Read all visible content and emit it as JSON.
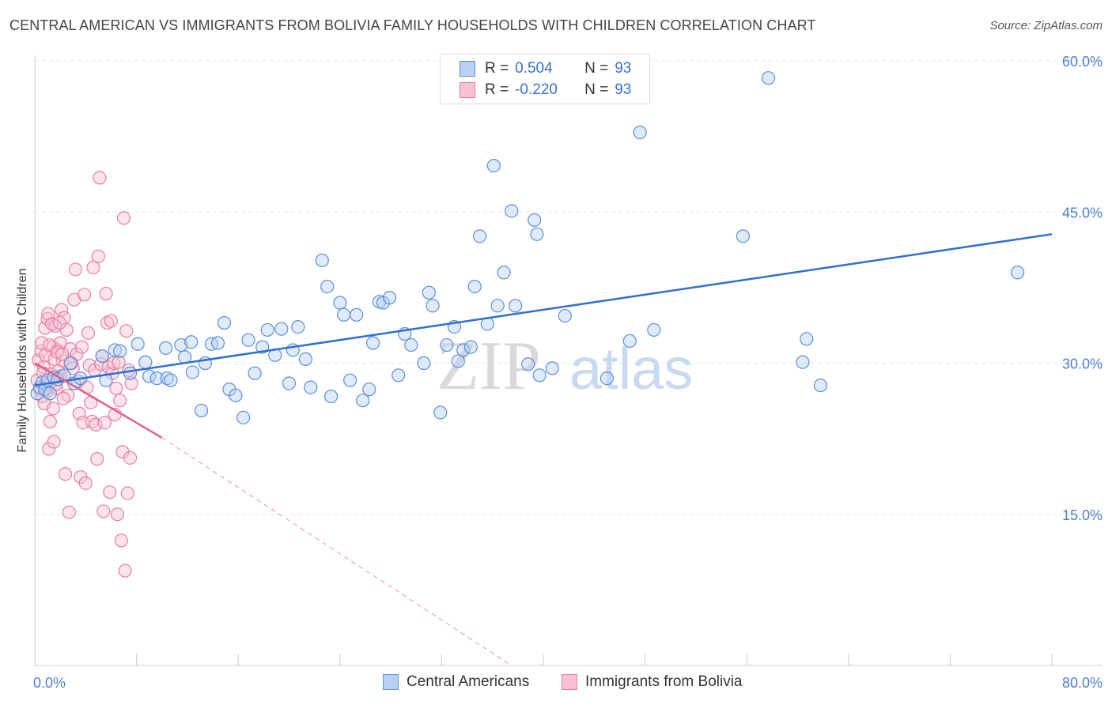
{
  "header": {
    "title": "CENTRAL AMERICAN VS IMMIGRANTS FROM BOLIVIA FAMILY HOUSEHOLDS WITH CHILDREN CORRELATION CHART",
    "source": "Source: ZipAtlas.com"
  },
  "watermark": {
    "zip": "ZIP",
    "atlas": "atlas"
  },
  "legend": {
    "r_label": "R =",
    "n_label": "N =",
    "series": [
      {
        "r": "0.504",
        "n": "93"
      },
      {
        "r": "-0.220",
        "n": "93"
      }
    ]
  },
  "colors": {
    "blue_fill": "#b8d1f3",
    "blue_stroke": "#5b8fd6",
    "blue_line": "#2e6fcf",
    "pink_fill": "#f7c1d2",
    "pink_stroke": "#e67ea0",
    "pink_line": "#e0608a",
    "axis_text": "#4a7fd0"
  },
  "chart_data": {
    "type": "scatter",
    "title": "CENTRAL AMERICAN VS IMMIGRANTS FROM BOLIVIA FAMILY HOUSEHOLDS WITH CHILDREN CORRELATION CHART",
    "xlabel": "",
    "ylabel": "Family Households with Children",
    "xlim": [
      0,
      80
    ],
    "ylim": [
      0,
      60
    ],
    "x_tick_labels": [
      "0.0%",
      "80.0%"
    ],
    "y_ticks": [
      15,
      30,
      45,
      60
    ],
    "y_tick_labels": [
      "15.0%",
      "30.0%",
      "45.0%",
      "60.0%"
    ],
    "legend_position": "top-center",
    "grid": true,
    "series": [
      {
        "name": "Central Americans",
        "r": 0.504,
        "n": 93,
        "trend": {
          "x": [
            0,
            80
          ],
          "y": [
            27.8,
            42.8
          ]
        },
        "points": [
          [
            0.2,
            27
          ],
          [
            0.4,
            27.6
          ],
          [
            0.6,
            28.1
          ],
          [
            0.8,
            27.4
          ],
          [
            1.0,
            28.3
          ],
          [
            1.2,
            27.0
          ],
          [
            1.5,
            28.6
          ],
          [
            1.8,
            28.4
          ],
          [
            2.3,
            28.8
          ],
          [
            2.8,
            30.0
          ],
          [
            3.1,
            28.0
          ],
          [
            3.6,
            28.5
          ],
          [
            5.3,
            30.7
          ],
          [
            5.6,
            28.3
          ],
          [
            6.3,
            31.3
          ],
          [
            6.7,
            31.2
          ],
          [
            7.5,
            29.0
          ],
          [
            8.1,
            31.9
          ],
          [
            8.7,
            30.1
          ],
          [
            9.0,
            28.7
          ],
          [
            9.6,
            28.5
          ],
          [
            10.3,
            31.5
          ],
          [
            10.4,
            28.5
          ],
          [
            10.7,
            28.3
          ],
          [
            11.5,
            31.8
          ],
          [
            11.8,
            30.6
          ],
          [
            12.3,
            32.1
          ],
          [
            12.4,
            29.1
          ],
          [
            13.1,
            25.3
          ],
          [
            13.4,
            30.0
          ],
          [
            13.9,
            31.9
          ],
          [
            14.4,
            32.0
          ],
          [
            14.9,
            34.0
          ],
          [
            15.3,
            27.4
          ],
          [
            15.8,
            26.8
          ],
          [
            16.4,
            24.6
          ],
          [
            16.8,
            32.3
          ],
          [
            17.3,
            29.0
          ],
          [
            17.9,
            31.6
          ],
          [
            18.3,
            33.3
          ],
          [
            18.9,
            30.8
          ],
          [
            19.4,
            33.4
          ],
          [
            20.0,
            28.0
          ],
          [
            20.3,
            31.3
          ],
          [
            20.7,
            33.6
          ],
          [
            21.3,
            30.4
          ],
          [
            21.7,
            27.6
          ],
          [
            22.6,
            40.2
          ],
          [
            23.0,
            37.6
          ],
          [
            23.3,
            26.7
          ],
          [
            24.0,
            36.0
          ],
          [
            24.3,
            34.8
          ],
          [
            24.8,
            28.3
          ],
          [
            25.3,
            34.8
          ],
          [
            25.8,
            26.3
          ],
          [
            26.3,
            27.4
          ],
          [
            26.6,
            32.0
          ],
          [
            27.1,
            36.1
          ],
          [
            27.4,
            36.0
          ],
          [
            27.9,
            36.5
          ],
          [
            28.6,
            28.8
          ],
          [
            29.1,
            32.9
          ],
          [
            29.6,
            31.8
          ],
          [
            30.6,
            30.0
          ],
          [
            31.0,
            37.0
          ],
          [
            31.3,
            35.7
          ],
          [
            31.9,
            25.1
          ],
          [
            32.4,
            31.8
          ],
          [
            33.0,
            33.6
          ],
          [
            33.3,
            30.2
          ],
          [
            33.7,
            31.3
          ],
          [
            34.3,
            31.6
          ],
          [
            34.6,
            37.6
          ],
          [
            35.0,
            42.6
          ],
          [
            35.6,
            33.9
          ],
          [
            36.1,
            49.6
          ],
          [
            36.4,
            35.7
          ],
          [
            36.9,
            39.0
          ],
          [
            37.5,
            45.1
          ],
          [
            37.8,
            35.7
          ],
          [
            38.8,
            29.9
          ],
          [
            39.3,
            44.2
          ],
          [
            39.7,
            28.8
          ],
          [
            39.5,
            42.8
          ],
          [
            40.7,
            29.5
          ],
          [
            41.7,
            34.7
          ],
          [
            45.0,
            28.5
          ],
          [
            46.8,
            32.2
          ],
          [
            47.6,
            52.9
          ],
          [
            48.7,
            33.3
          ],
          [
            55.7,
            42.6
          ],
          [
            57.7,
            58.3
          ],
          [
            60.4,
            30.1
          ],
          [
            60.7,
            32.4
          ],
          [
            61.8,
            27.8
          ],
          [
            77.3,
            39.0
          ]
        ]
      },
      {
        "name": "Immigrants from Bolivia",
        "r": -0.22,
        "n": 93,
        "trend_solid": {
          "x": [
            0,
            10
          ],
          "y": [
            30.0,
            22.6
          ]
        },
        "trend_dashed": {
          "x": [
            10,
            37.5
          ],
          "y": [
            22.6,
            0
          ]
        },
        "points": [
          [
            0.2,
            28.3
          ],
          [
            0.3,
            30.3
          ],
          [
            0.4,
            27.4
          ],
          [
            0.5,
            31.2
          ],
          [
            0.6,
            26.7
          ],
          [
            0.7,
            29.6
          ],
          [
            0.8,
            33.5
          ],
          [
            0.9,
            27.8
          ],
          [
            1.0,
            34.4
          ],
          [
            1.1,
            21.5
          ],
          [
            1.2,
            24.2
          ],
          [
            1.3,
            28.9
          ],
          [
            1.4,
            31.6
          ],
          [
            1.5,
            22.2
          ],
          [
            1.6,
            33.7
          ],
          [
            1.7,
            27.5
          ],
          [
            1.8,
            31.3
          ],
          [
            1.9,
            28.6
          ],
          [
            2.0,
            32.0
          ],
          [
            2.1,
            35.3
          ],
          [
            2.2,
            30.2
          ],
          [
            2.3,
            34.5
          ],
          [
            2.4,
            19.0
          ],
          [
            2.5,
            33.3
          ],
          [
            2.6,
            26.8
          ],
          [
            2.7,
            15.2
          ],
          [
            2.8,
            31.4
          ],
          [
            2.9,
            30.0
          ],
          [
            3.0,
            29.5
          ],
          [
            3.1,
            36.3
          ],
          [
            3.2,
            39.3
          ],
          [
            3.3,
            30.9
          ],
          [
            3.4,
            28.2
          ],
          [
            3.5,
            25.0
          ],
          [
            3.6,
            18.7
          ],
          [
            3.7,
            31.6
          ],
          [
            3.8,
            24.1
          ],
          [
            3.9,
            36.8
          ],
          [
            4.0,
            18.1
          ],
          [
            4.1,
            27.6
          ],
          [
            4.2,
            33.0
          ],
          [
            4.3,
            29.8
          ],
          [
            4.4,
            26.1
          ],
          [
            4.5,
            24.2
          ],
          [
            4.6,
            39.5
          ],
          [
            4.7,
            29.3
          ],
          [
            4.8,
            23.9
          ],
          [
            4.9,
            20.5
          ],
          [
            5.0,
            40.6
          ],
          [
            5.1,
            48.4
          ],
          [
            5.2,
            29.9
          ],
          [
            5.3,
            30.7
          ],
          [
            5.4,
            15.3
          ],
          [
            5.5,
            24.1
          ],
          [
            5.6,
            36.9
          ],
          [
            5.7,
            34.0
          ],
          [
            5.8,
            29.6
          ],
          [
            5.9,
            17.2
          ],
          [
            6.0,
            34.2
          ],
          [
            6.1,
            29.0
          ],
          [
            6.2,
            30.0
          ],
          [
            6.3,
            24.9
          ],
          [
            6.4,
            27.5
          ],
          [
            6.5,
            15.0
          ],
          [
            6.6,
            30.1
          ],
          [
            6.7,
            26.3
          ],
          [
            6.8,
            12.4
          ],
          [
            6.9,
            21.2
          ],
          [
            7.0,
            44.4
          ],
          [
            7.1,
            9.4
          ],
          [
            7.2,
            33.2
          ],
          [
            7.3,
            17.1
          ],
          [
            7.4,
            29.3
          ],
          [
            7.5,
            20.6
          ],
          [
            7.6,
            28.0
          ],
          [
            0.55,
            32.0
          ],
          [
            0.65,
            29.0
          ],
          [
            0.75,
            26.0
          ],
          [
            0.85,
            30.8
          ],
          [
            0.95,
            27.2
          ],
          [
            1.05,
            34.9
          ],
          [
            1.15,
            31.8
          ],
          [
            1.25,
            28.1
          ],
          [
            1.35,
            33.9
          ],
          [
            1.45,
            25.5
          ],
          [
            1.55,
            30.4
          ],
          [
            1.65,
            27.9
          ],
          [
            1.75,
            31.1
          ],
          [
            1.85,
            29.2
          ],
          [
            1.95,
            34.0
          ],
          [
            2.05,
            28.7
          ],
          [
            2.15,
            30.9
          ],
          [
            2.25,
            26.5
          ]
        ]
      }
    ]
  },
  "bottom_legend": {
    "items": [
      {
        "label": "Central Americans"
      },
      {
        "label": "Immigrants from Bolivia"
      }
    ]
  }
}
